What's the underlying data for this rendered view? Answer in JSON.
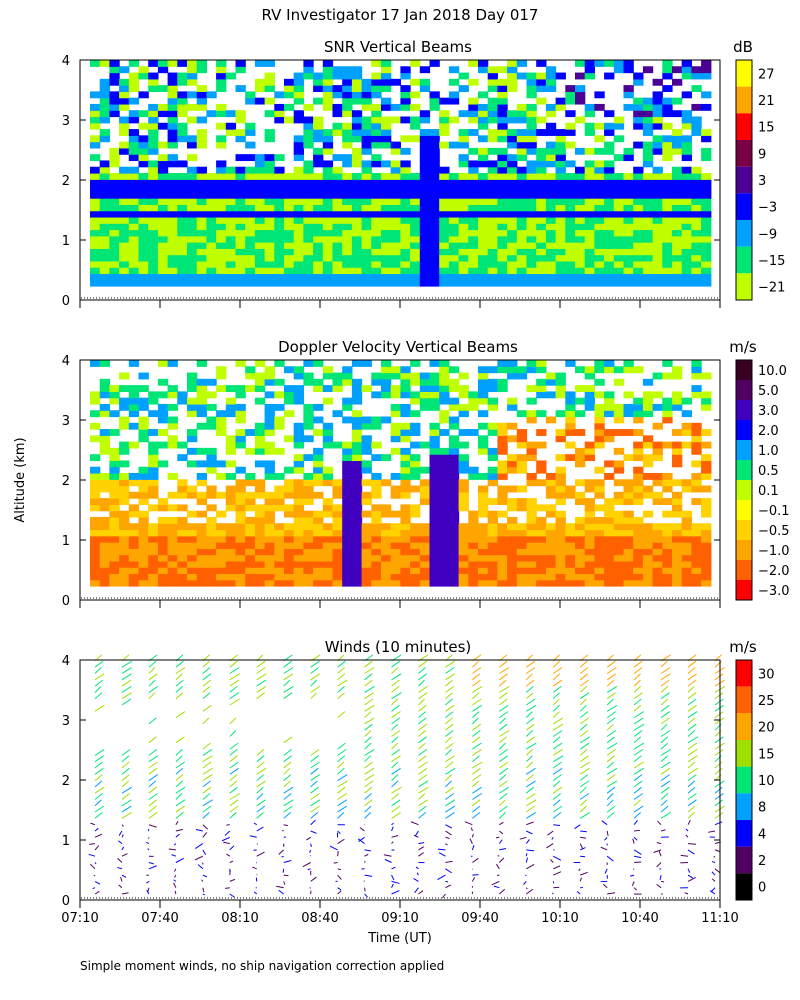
{
  "header": {
    "title": "RV Investigator  17 Jan 2018 Day 017",
    "ylabel": "Altitude (km)",
    "xlabel": "Time (UT)",
    "footnote": "Simple moment winds, no ship navigation correction applied"
  },
  "x_ticks": [
    "07:10",
    "07:40",
    "08:10",
    "08:40",
    "09:10",
    "09:40",
    "10:10",
    "10:40",
    "11:10"
  ],
  "y_ticks": [
    "0",
    "1",
    "2",
    "3",
    "4"
  ],
  "chart_data": [
    {
      "type": "heatmap",
      "title": "SNR Vertical Beams",
      "units": "dB",
      "xlim": [
        "07:10",
        "11:10"
      ],
      "ylim": [
        0,
        4
      ],
      "colorbar": {
        "labels": [
          "27",
          "21",
          "15",
          "9",
          "3",
          "−3",
          "−9",
          "−15",
          "−21"
        ],
        "colors": [
          "#ffff00",
          "#ffa500",
          "#ff0000",
          "#7a0046",
          "#4b0096",
          "#0000ff",
          "#00a0ff",
          "#00e676",
          "#c0ff00"
        ]
      }
    },
    {
      "type": "heatmap",
      "title": "Doppler Velocity Vertical Beams",
      "units": "m/s",
      "xlim": [
        "07:10",
        "11:10"
      ],
      "ylim": [
        0,
        4
      ],
      "colorbar": {
        "labels": [
          "10.0",
          "5.0",
          "3.0",
          "2.0",
          "1.0",
          "0.5",
          "0.1",
          "−0.1",
          "−0.5",
          "−1.0",
          "−2.0",
          "−3.0"
        ],
        "colors": [
          "#3a0020",
          "#500060",
          "#4000c0",
          "#0000ff",
          "#00a0ff",
          "#00e676",
          "#c0ff00",
          "#ffff00",
          "#ffd200",
          "#ffa500",
          "#ff6000",
          "#ff0000"
        ]
      }
    },
    {
      "type": "scatter",
      "title": "Winds (10 minutes)",
      "units": "m/s",
      "xlim": [
        "07:10",
        "11:10"
      ],
      "ylim": [
        0,
        4
      ],
      "colorbar": {
        "labels": [
          "30",
          "25",
          "20",
          "15",
          "10",
          "8",
          "4",
          "2",
          "0"
        ],
        "colors": [
          "#ff0000",
          "#ff6000",
          "#ffa500",
          "#a0e000",
          "#00e676",
          "#00a0ff",
          "#0000ff",
          "#500060",
          "#000000"
        ]
      }
    }
  ]
}
